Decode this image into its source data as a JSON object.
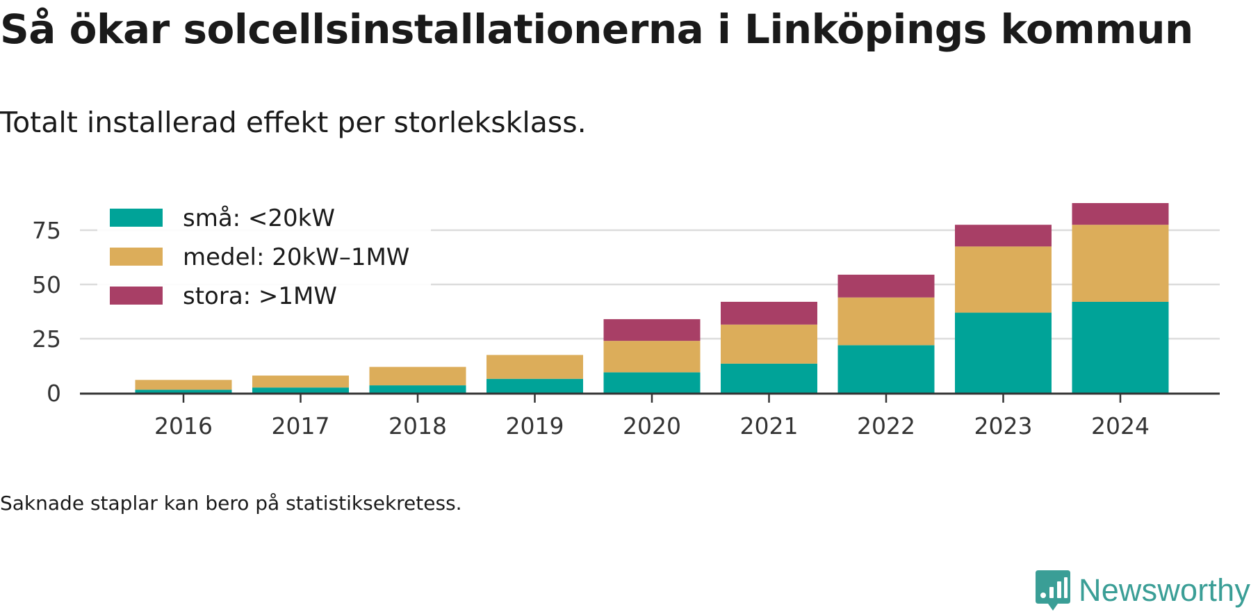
{
  "title": "Så ökar solcellsinstallationerna i Linköpings kommun",
  "subtitle": "Totalt installerad effekt per storleksklass.",
  "footnote": "Saknade staplar kan bero på statistiksekretess.",
  "brand": {
    "name": "Newsworthy",
    "color": "#3a9e96",
    "icon": "newsworthy-logo-icon"
  },
  "chart_data": {
    "type": "bar",
    "stacked": true,
    "title": "Så ökar solcellsinstallationerna i Linköpings kommun",
    "subtitle": "Totalt installerad effekt per storleksklass.",
    "xlabel": "",
    "ylabel": "",
    "categories": [
      "2016",
      "2017",
      "2018",
      "2019",
      "2020",
      "2021",
      "2022",
      "2023",
      "2024"
    ],
    "ylim": [
      0,
      87
    ],
    "yticks": [
      0,
      25,
      50,
      75
    ],
    "grid": "horizontal",
    "legend_position": "top-left",
    "series": [
      {
        "name": "små: <20kW",
        "color": "#00a398",
        "values": [
          1.5,
          2.5,
          3.5,
          6.5,
          9.5,
          13.5,
          22,
          37,
          42
        ]
      },
      {
        "name": "medel: 20kW–1MW",
        "color": "#dcad5a",
        "values": [
          4.5,
          5.5,
          8.5,
          11,
          14.5,
          18,
          22,
          30.5,
          35.5
        ]
      },
      {
        "name": "stora: >1MW",
        "color": "#a83f66",
        "values": [
          0,
          0,
          0,
          0,
          10,
          10.5,
          10.5,
          10,
          10
        ]
      }
    ]
  }
}
